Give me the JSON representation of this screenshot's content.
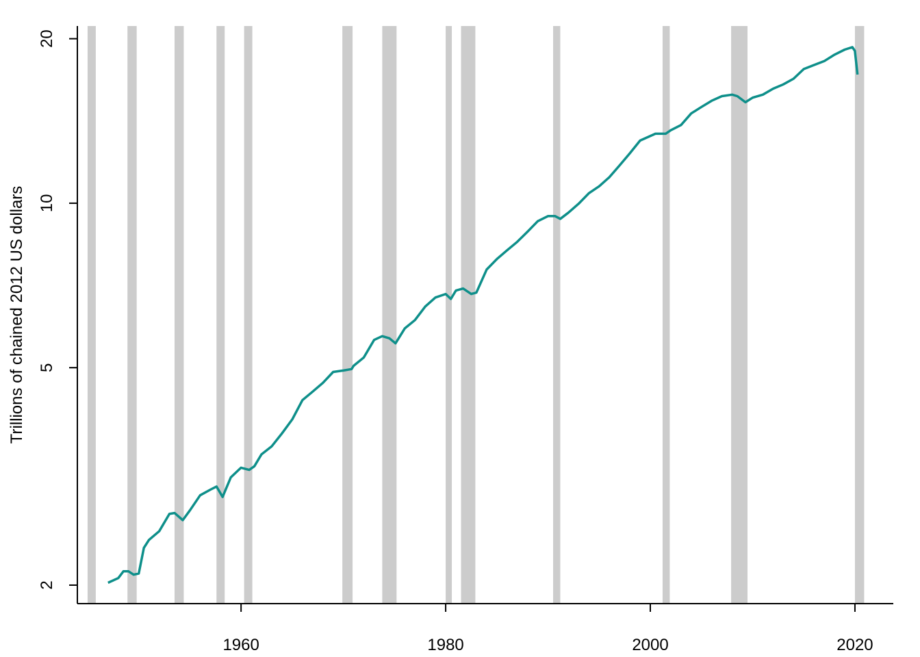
{
  "chart_data": {
    "type": "line",
    "y_label": "Trillions of chained 2012 US dollars",
    "x": [
      1947,
      1948,
      1948.5,
      1949,
      1949.5,
      1950,
      1950.5,
      1951,
      1952,
      1953,
      1953.5,
      1954.3,
      1955,
      1956,
      1957,
      1957.6,
      1958.2,
      1959,
      1960,
      1960.8,
      1961.3,
      1962,
      1963,
      1964,
      1965,
      1966,
      1967,
      1968,
      1969,
      1970,
      1970.8,
      1971,
      1972,
      1973,
      1973.8,
      1974.5,
      1975.1,
      1976,
      1977,
      1978,
      1979,
      1980,
      1980.5,
      1981,
      1981.7,
      1982.5,
      1983,
      1984,
      1985,
      1986,
      1987,
      1988,
      1989,
      1990,
      1990.7,
      1991.2,
      1992,
      1993,
      1994,
      1995,
      1996,
      1997,
      1998,
      1999,
      2000.5,
      2001.5,
      2002,
      2003,
      2004,
      2005,
      2006,
      2007,
      2008,
      2008.5,
      2009.3,
      2010,
      2011,
      2012,
      2013,
      2014,
      2015,
      2016,
      2017,
      2018,
      2019,
      2019.75,
      2020,
      2020.25
    ],
    "values": [
      2.02,
      2.06,
      2.12,
      2.12,
      2.09,
      2.1,
      2.34,
      2.42,
      2.51,
      2.7,
      2.71,
      2.63,
      2.74,
      2.92,
      2.99,
      3.03,
      2.9,
      3.15,
      3.28,
      3.25,
      3.3,
      3.47,
      3.59,
      3.79,
      4.02,
      4.36,
      4.52,
      4.69,
      4.91,
      4.94,
      4.97,
      5.04,
      5.22,
      5.62,
      5.71,
      5.66,
      5.54,
      5.9,
      6.11,
      6.47,
      6.72,
      6.82,
      6.68,
      6.92,
      6.98,
      6.82,
      6.86,
      7.56,
      7.9,
      8.2,
      8.5,
      8.87,
      9.27,
      9.47,
      9.47,
      9.36,
      9.61,
      9.98,
      10.43,
      10.74,
      11.16,
      11.73,
      12.34,
      13.02,
      13.4,
      13.4,
      13.6,
      13.9,
      14.6,
      15.0,
      15.4,
      15.7,
      15.8,
      15.7,
      15.3,
      15.6,
      15.8,
      16.2,
      16.5,
      16.9,
      17.6,
      17.9,
      18.2,
      18.7,
      19.1,
      19.3,
      19.0,
      17.2
    ],
    "color": "#0e8f8a",
    "recessions": [
      [
        1945.0,
        1945.8
      ],
      [
        1948.9,
        1949.8
      ],
      [
        1953.5,
        1954.4
      ],
      [
        1957.6,
        1958.4
      ],
      [
        1960.3,
        1961.1
      ],
      [
        1969.9,
        1970.9
      ],
      [
        1973.8,
        1975.2
      ],
      [
        1980.0,
        1980.6
      ],
      [
        1981.5,
        1982.9
      ],
      [
        1990.5,
        1991.2
      ],
      [
        2001.2,
        2001.9
      ],
      [
        2007.9,
        2009.5
      ],
      [
        2020.0,
        2020.9
      ]
    ],
    "recession_color": "#cccccc",
    "xlim": [
      1944,
      2023.75
    ],
    "xticks": [
      1960,
      1980,
      2000,
      2020
    ],
    "ylim": [
      1.85,
      21.1
    ],
    "yticks": [
      2,
      5,
      10,
      20
    ],
    "log_y": true
  }
}
